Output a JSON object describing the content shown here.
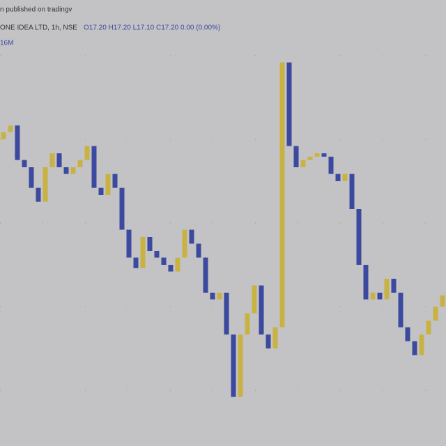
{
  "chart_data": {
    "type": "candlestick",
    "published": "n published on tradingv",
    "symbol": "ONE IDEA LTD, 1h, NSE",
    "ohlc_label": "O17.20 H17.20 L17.10 C17.20 0.00 (0.00%)",
    "volume_label": "16M",
    "open": [
      20.0,
      20.13,
      20.25,
      19.63,
      19.5,
      19.13,
      18.88,
      19.5,
      19.75,
      19.5,
      19.38,
      19.5,
      19.63,
      19.88,
      19.13,
      19.0,
      19.38,
      19.13,
      18.38,
      17.88,
      17.69,
      18.25,
      18.0,
      17.88,
      17.75,
      17.63,
      17.88,
      18.38,
      18.13,
      17.88,
      17.25,
      17.13,
      17.25,
      16.5,
      15.38,
      16.5,
      16.88,
      17.38,
      16.5,
      16.25,
      16.63,
      21.38,
      19.88,
      19.5,
      19.63,
      19.69,
      19.75,
      19.69,
      19.38,
      19.25,
      19.38,
      18.75,
      17.75,
      17.13,
      17.25,
      17.13,
      17.5,
      17.25,
      16.63,
      16.38,
      16.13,
      16.5,
      16.75,
      17.0
    ],
    "close": [
      20.13,
      20.25,
      19.63,
      19.5,
      19.13,
      18.88,
      19.5,
      19.75,
      19.5,
      19.38,
      19.5,
      19.63,
      19.88,
      19.13,
      19.0,
      19.38,
      19.13,
      18.38,
      17.88,
      17.69,
      18.25,
      18.0,
      17.88,
      17.75,
      17.63,
      17.88,
      18.38,
      18.13,
      17.88,
      17.25,
      17.13,
      17.25,
      16.5,
      15.38,
      16.5,
      16.88,
      17.38,
      16.5,
      16.25,
      16.63,
      21.38,
      19.88,
      19.5,
      19.63,
      19.69,
      19.75,
      19.69,
      19.38,
      19.25,
      19.38,
      18.75,
      17.75,
      17.13,
      17.25,
      17.13,
      17.5,
      17.25,
      16.63,
      16.38,
      16.13,
      16.5,
      16.75,
      17.0,
      17.2
    ],
    "up_color": "#c9b244",
    "down_color": "#3b4a9e",
    "ylim": [
      14.5,
      22.5
    ]
  }
}
